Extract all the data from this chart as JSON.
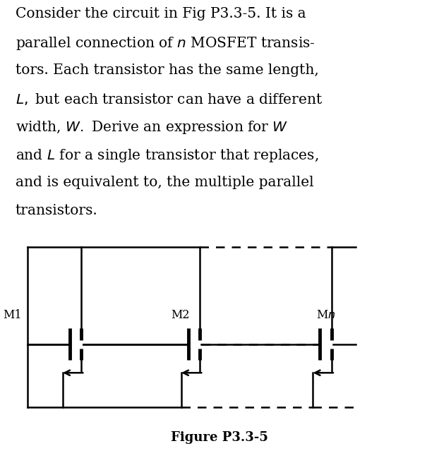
{
  "title": "Figure P3.3-5",
  "background_color": "#ffffff",
  "text_color": "#000000",
  "fig_width": 6.22,
  "fig_height": 6.49,
  "paragraph_lines": [
    "Consider the circuit in Fig P3.3-5. It is a",
    "parallel connection of $n$ MOSFET transis-",
    "tors. Each transistor has the same length,",
    "$L,$ but each transistor can have a different",
    "width, $W.$ Derive an expression for $W$",
    "and $L$ for a single transistor that replaces,",
    "and is equivalent to, the multiple parallel",
    "transistors."
  ],
  "lw": 1.8,
  "lw_thick": 3.5,
  "fontsize_text": 14.5,
  "fontsize_label": 11.5,
  "fontsize_caption": 13
}
